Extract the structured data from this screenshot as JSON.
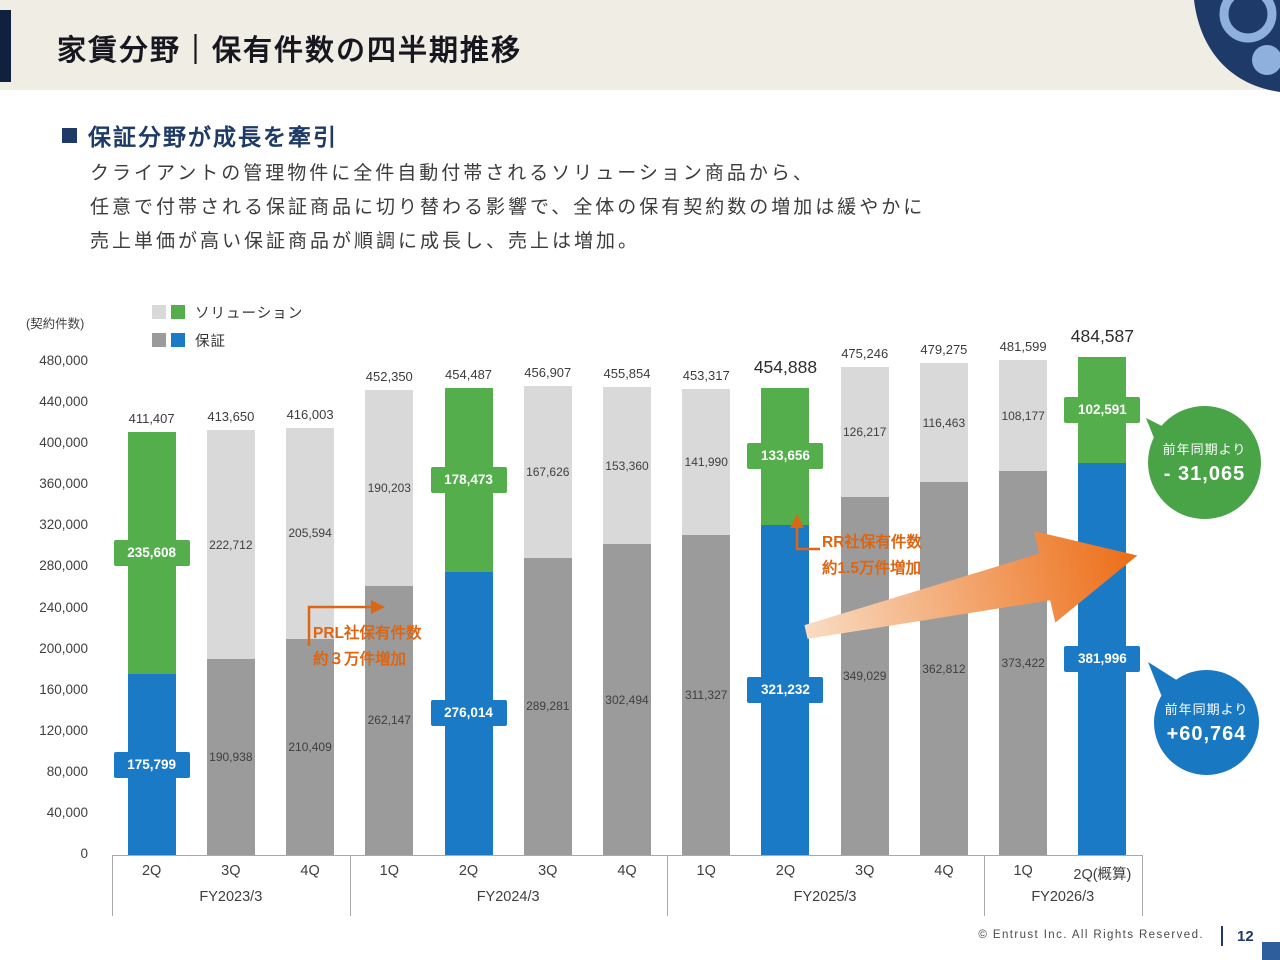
{
  "header": {
    "title": "家賃分野｜保有件数の四半期推移"
  },
  "content": {
    "heading": "保証分野が成長を牽引",
    "paragraph_lines": [
      "クライアントの管理物件に全件自動付帯されるソリューション商品から、",
      "任意で付帯される保証商品に切り替わる影響で、全体の保有契約数の増加は緩やかに",
      "売上単価が高い保証商品が順調に成長し、売上は増加。"
    ]
  },
  "chart_data": {
    "type": "bar",
    "stacked": true,
    "axis_unit_label": "(契約件数)",
    "ylim": [
      0,
      480000
    ],
    "ytick_step": 40000,
    "legend": [
      {
        "label": "ソリューション",
        "swatches": [
          "#d9d9d9",
          "#54ae4c"
        ]
      },
      {
        "label": "保証",
        "swatches": [
          "#9b9b9b",
          "#1b7ac5"
        ]
      }
    ],
    "series_names": {
      "bottom": "保証",
      "top": "ソリューション"
    },
    "colors": {
      "normal": {
        "guarantee": "#9b9b9b",
        "solution": "#d9d9d9"
      },
      "highlight": {
        "guarantee": "#1b7ac5",
        "solution": "#54ae4c"
      },
      "annotation_orange": "#dc6613",
      "callout_green": "#48a447",
      "callout_blue": "#1878c1"
    },
    "groups": [
      {
        "label": "FY2023/3",
        "count": 3
      },
      {
        "label": "FY2024/3",
        "count": 4
      },
      {
        "label": "FY2025/3",
        "count": 4
      },
      {
        "label": "FY2026/3",
        "count": 2
      }
    ],
    "bars": [
      {
        "quarter": "2Q",
        "guarantee": 175799,
        "solution": 235608,
        "total": 411407,
        "highlight": true,
        "total_emphasis": false
      },
      {
        "quarter": "3Q",
        "guarantee": 190938,
        "solution": 222712,
        "total": 413650,
        "highlight": false,
        "total_emphasis": false
      },
      {
        "quarter": "4Q",
        "guarantee": 210409,
        "solution": 205594,
        "total": 416003,
        "highlight": false,
        "total_emphasis": false
      },
      {
        "quarter": "1Q",
        "guarantee": 262147,
        "solution": 190203,
        "total": 452350,
        "highlight": false,
        "total_emphasis": false
      },
      {
        "quarter": "2Q",
        "guarantee": 276014,
        "solution": 178473,
        "total": 454487,
        "highlight": true,
        "total_emphasis": false
      },
      {
        "quarter": "3Q",
        "guarantee": 289281,
        "solution": 167626,
        "total": 456907,
        "highlight": false,
        "total_emphasis": false
      },
      {
        "quarter": "4Q",
        "guarantee": 302494,
        "solution": 153360,
        "total": 455854,
        "highlight": false,
        "total_emphasis": false
      },
      {
        "quarter": "1Q",
        "guarantee": 311327,
        "solution": 141990,
        "total": 453317,
        "highlight": false,
        "total_emphasis": false
      },
      {
        "quarter": "2Q",
        "guarantee": 321232,
        "solution": 133656,
        "total": 454888,
        "highlight": true,
        "total_emphasis": true
      },
      {
        "quarter": "3Q",
        "guarantee": 349029,
        "solution": 126217,
        "total": 475246,
        "highlight": false,
        "total_emphasis": false
      },
      {
        "quarter": "4Q",
        "guarantee": 362812,
        "solution": 116463,
        "total": 479275,
        "highlight": false,
        "total_emphasis": false
      },
      {
        "quarter": "1Q",
        "guarantee": 373422,
        "solution": 108177,
        "total": 481599,
        "highlight": false,
        "total_emphasis": false
      },
      {
        "quarter": "2Q(概算)",
        "guarantee": 381996,
        "solution": 102591,
        "total": 484587,
        "highlight": true,
        "total_emphasis": true
      }
    ],
    "annotations": [
      {
        "id": "prl",
        "lines": [
          "PRL社保有件数",
          "約３万件増加"
        ]
      },
      {
        "id": "rr",
        "lines": [
          "RR社保有件数",
          "約1.5万件増加"
        ]
      }
    ],
    "callouts": [
      {
        "id": "yoy-solution",
        "lines": [
          "前年同期より",
          "- 31,065"
        ]
      },
      {
        "id": "yoy-guarantee",
        "lines": [
          "前年同期より",
          "+60,764"
        ]
      }
    ]
  },
  "footer": {
    "copyright": "© Entrust Inc. All Rights Reserved.",
    "page": "12"
  }
}
